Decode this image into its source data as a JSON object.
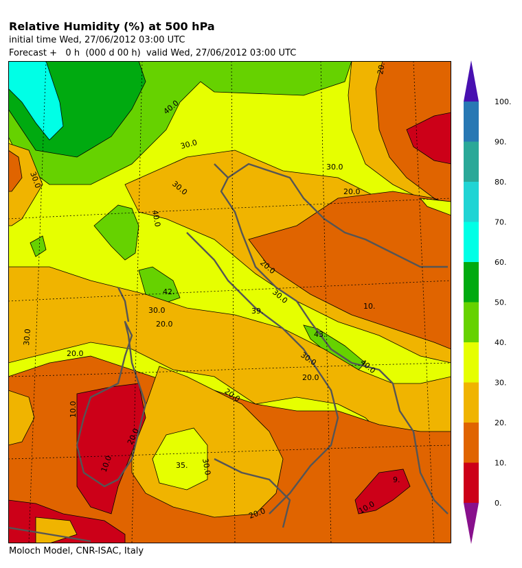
{
  "header": {
    "title": "Relative Humidity (%) at 500 hPa",
    "initial_time": "initial time  Wed, 27/06/2012  03:00 UTC",
    "forecast": "Forecast +   0 h  (000 d 00 h)  valid Wed, 27/06/2012 03:00 UTC"
  },
  "footer": {
    "credit": "Moloch Model, CNR-ISAC, Italy"
  },
  "colorbar": {
    "tick_labels": [
      "100.",
      "90.",
      "80.",
      "70.",
      "60.",
      "50.",
      "40.",
      "30.",
      "20.",
      "10.",
      "0."
    ],
    "levels": [
      0,
      10,
      20,
      30,
      40,
      50,
      60,
      70,
      80,
      90,
      100
    ],
    "colors": [
      "#cc0018",
      "#e06400",
      "#f0b400",
      "#e6ff00",
      "#66d200",
      "#00aa10",
      "#00ffe6",
      "#20d4d4",
      "#2aa898",
      "#2878b4"
    ],
    "under_color": "#88108c",
    "over_color": "#4810b0"
  },
  "map_labels": [
    "40.0",
    "30.0",
    "30.0",
    "20.0",
    "30.0",
    "40.0",
    "30.0",
    "42.",
    "30.0",
    "20.0",
    "39.",
    "30.0",
    "20.0",
    "10.",
    "30.0",
    "20.0",
    "43.",
    "30.0",
    "40.0",
    "20.0",
    "20.0",
    "10.0",
    "20.0",
    "10.0",
    "35.",
    "30.0",
    "20.0",
    "9.",
    "10.0",
    "20."
  ]
}
